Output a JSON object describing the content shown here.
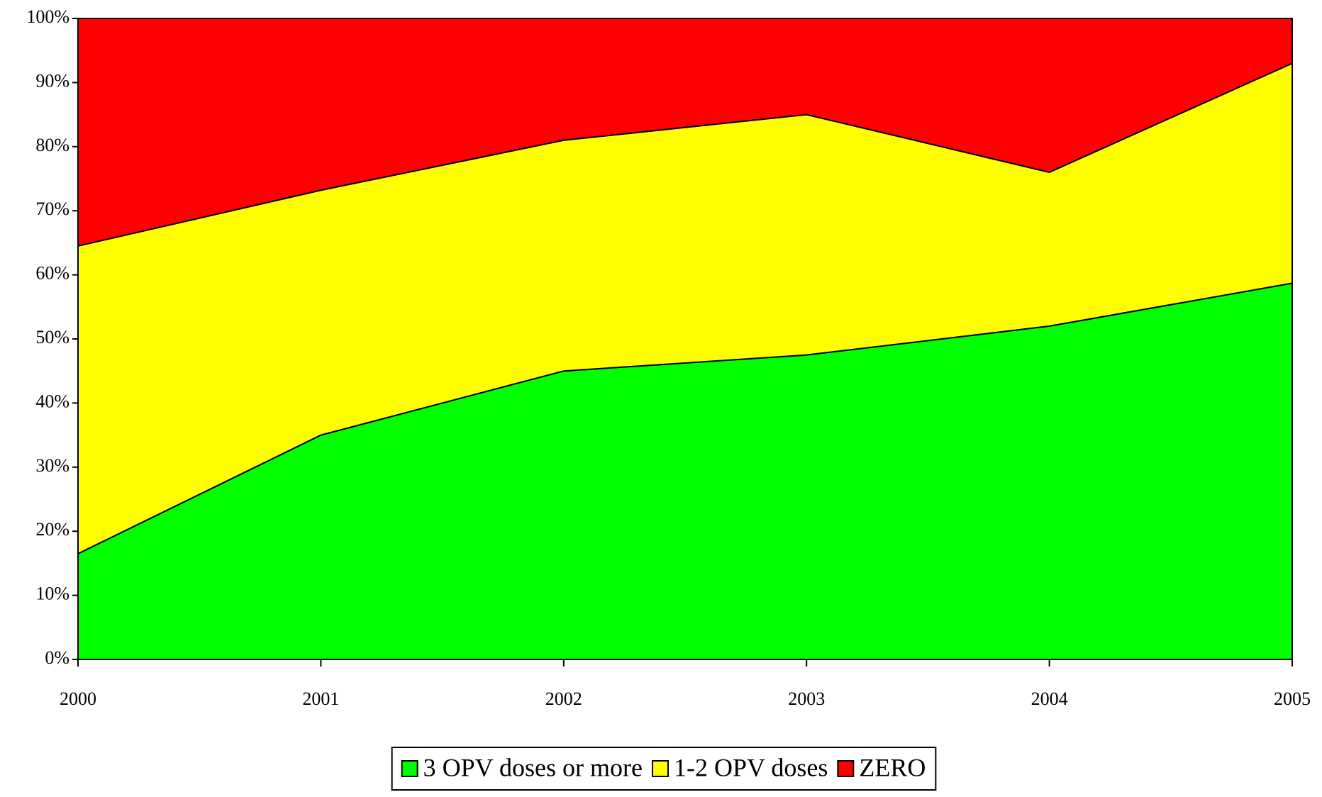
{
  "chart_data": {
    "type": "stacked_area",
    "categories": [
      "2000",
      "2001",
      "2002",
      "2003",
      "2004",
      "2005"
    ],
    "series": [
      {
        "name": "3 OPV doses or more",
        "color": "#00ff00",
        "values": [
          16.5,
          35,
          45,
          47.5,
          52,
          58.7
        ]
      },
      {
        "name": "1-2 OPV doses",
        "color": "#ffff00",
        "values": [
          48,
          38.2,
          36,
          37.5,
          24,
          34.3
        ]
      },
      {
        "name": "ZERO",
        "color": "#ff0000",
        "values": [
          35.5,
          26.8,
          19,
          15,
          24,
          7
        ]
      }
    ],
    "ylim": [
      0,
      100
    ],
    "yticks": [
      {
        "value": 0,
        "label": "0%"
      },
      {
        "value": 10,
        "label": "10%"
      },
      {
        "value": 20,
        "label": "20%"
      },
      {
        "value": 30,
        "label": "30%"
      },
      {
        "value": 40,
        "label": "40%"
      },
      {
        "value": 50,
        "label": "50%"
      },
      {
        "value": 60,
        "label": "60%"
      },
      {
        "value": 70,
        "label": "70%"
      },
      {
        "value": 80,
        "label": "80%"
      },
      {
        "value": 90,
        "label": "90%"
      },
      {
        "value": 100,
        "label": "100%"
      }
    ],
    "legend": "bottom"
  }
}
